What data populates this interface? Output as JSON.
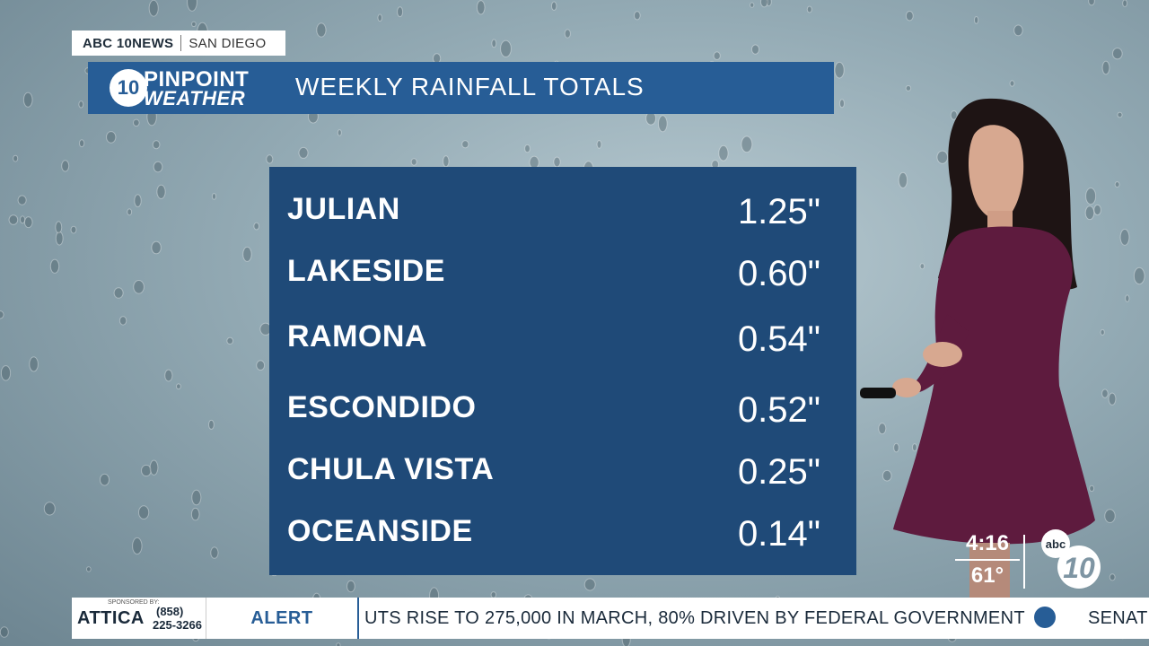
{
  "station": {
    "network": "ABC 10NEWS",
    "location": "SAN DIEGO"
  },
  "logo": {
    "circle": "10",
    "line1": "PINPOINT",
    "line2": "WEATHER"
  },
  "title": "WEEKLY RAINFALL TOTALS",
  "rainfall": [
    {
      "city": "JULIAN",
      "amount": "1.25\""
    },
    {
      "city": "LAKESIDE",
      "amount": "0.60\""
    },
    {
      "city": "RAMONA",
      "amount": "0.54\""
    },
    {
      "city": "ESCONDIDO",
      "amount": "0.52\""
    },
    {
      "city": "CHULA VISTA",
      "amount": "0.25\""
    },
    {
      "city": "OCEANSIDE",
      "amount": "0.14\""
    }
  ],
  "clock": {
    "time": "4:16",
    "temp": "61°"
  },
  "ticker": {
    "sponsored_by": "SPONSORED BY:",
    "sponsor_name": "ATTICA",
    "sponsor_phone_1": "(858)",
    "sponsor_phone_2": "225-3266",
    "alert_label": "ALERT",
    "headline": "UTS RISE TO 275,000 IN MARCH, 80% DRIVEN BY FEDERAL GOVERNMENT",
    "next_headline": "SENAT"
  },
  "colors": {
    "title_bar": "#275d96",
    "panel": "#1f4a78",
    "dress": "#5e1b3e"
  }
}
